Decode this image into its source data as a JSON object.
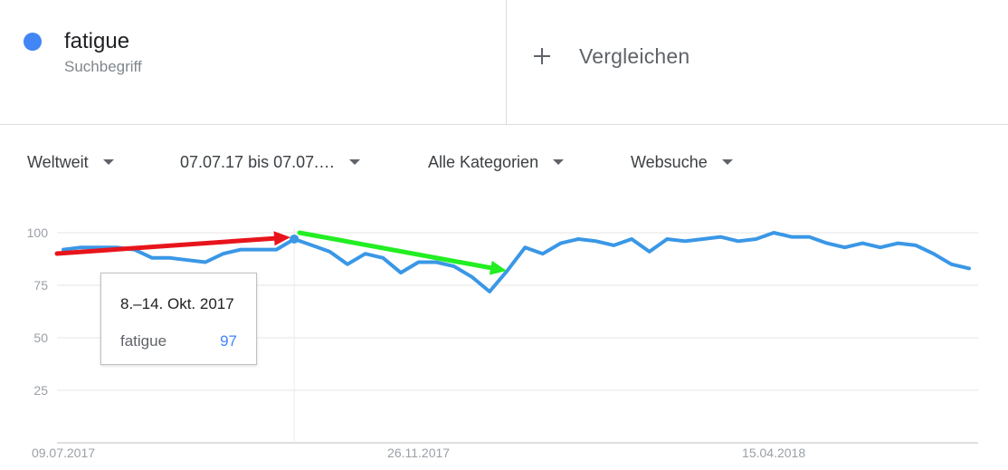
{
  "term": {
    "name": "fatigue",
    "type": "Suchbegriff",
    "color": "#4285f4"
  },
  "compare": {
    "label": "Vergleichen",
    "icon": "plus-icon"
  },
  "filters": {
    "region": "Weltweit",
    "timerange": "07.07.17 bis 07.07.…",
    "category": "Alle Kategorien",
    "search_type": "Websuche"
  },
  "tooltip": {
    "date": "8.–14. Okt. 2017",
    "term": "fatigue",
    "value": "97"
  },
  "chart_data": {
    "type": "line",
    "y_ticks": [
      "100",
      "75",
      "50",
      "25"
    ],
    "ylim": [
      0,
      100
    ],
    "x_labels": [
      "09.07.2017",
      "26.11.2017",
      "15.04.2018"
    ],
    "x_label_indices": [
      0,
      20,
      40
    ],
    "highlight_index": 13,
    "grid": true,
    "series": [
      {
        "name": "fatigue",
        "color": "#3a97e6",
        "values": [
          92,
          93,
          93,
          93,
          92,
          88,
          88,
          87,
          86,
          90,
          92,
          92,
          92,
          97,
          94,
          91,
          85,
          90,
          88,
          81,
          86,
          86,
          84,
          79,
          72,
          82,
          93,
          90,
          95,
          97,
          96,
          94,
          97,
          91,
          97,
          96,
          97,
          98,
          96,
          97,
          100,
          98,
          98,
          95,
          93,
          95,
          93,
          95,
          94,
          90,
          85,
          83
        ]
      }
    ]
  },
  "annotations": {
    "arrow_red_color": "#e8141b",
    "arrow_green_color": "#22ee22"
  }
}
